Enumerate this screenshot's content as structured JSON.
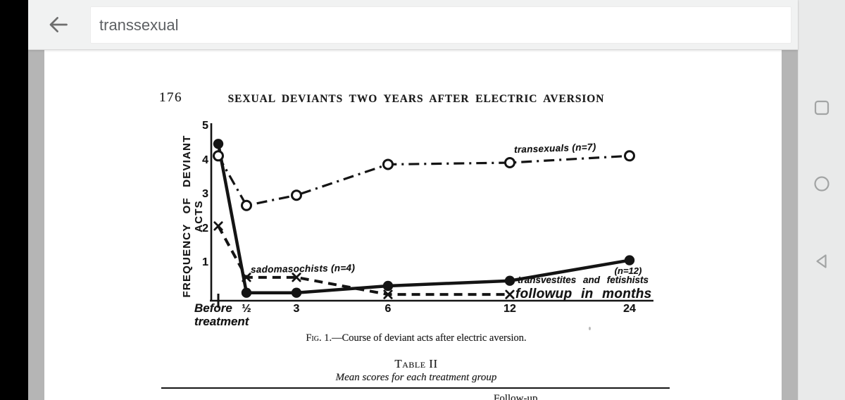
{
  "browser": {
    "search_value": "transsexual"
  },
  "icons": {
    "back_arrow": "arrow-left",
    "nav_recents": "rounded-square-outline",
    "nav_home": "circle-outline",
    "nav_back": "triangle-left-outline"
  },
  "paper": {
    "page_number": "176",
    "running_title": "SEXUAL DEVIANTS TWO YEARS AFTER ELECTRIC AVERSION",
    "figure_caption_prefix": "Fig. 1.",
    "figure_caption_rest": "—Course of deviant acts after electric aversion.",
    "table_label": "Table II",
    "table_subtitle": "Mean scores for each treatment group",
    "table_partial_header": "Follow-up"
  },
  "chart_data": {
    "type": "line",
    "title": "",
    "xlabel": "followup in months",
    "ylabel": "FREQUENCY OF DEVIANT ACTS",
    "x_categories": [
      "Before treatment",
      "½",
      "3",
      "6",
      "12",
      "24"
    ],
    "yticks": [
      1,
      2,
      3,
      4,
      5
    ],
    "ylim": [
      0,
      5.2
    ],
    "grid": false,
    "legend_position": "inline-annotations",
    "series": [
      {
        "name": "transexuals",
        "label_text": "transexuals (n=7)",
        "line": "dash-dot",
        "marker": "open-circle",
        "values": [
          4.15,
          2.7,
          3.0,
          3.9,
          3.95,
          4.15
        ]
      },
      {
        "name": "transvestites-and-fetishists",
        "label_line1": "(n=12)",
        "label_line2": "transvestites and fetishists",
        "line": "solid",
        "marker": "filled-circle",
        "values": [
          4.5,
          0.15,
          0.15,
          0.35,
          0.5,
          1.1
        ]
      },
      {
        "name": "sadomasochists",
        "label_text": "sadomasochists (n=4)",
        "line": "dashed",
        "marker": "x",
        "values": [
          2.1,
          0.6,
          0.6,
          0.1,
          0.1,
          null
        ]
      }
    ]
  }
}
